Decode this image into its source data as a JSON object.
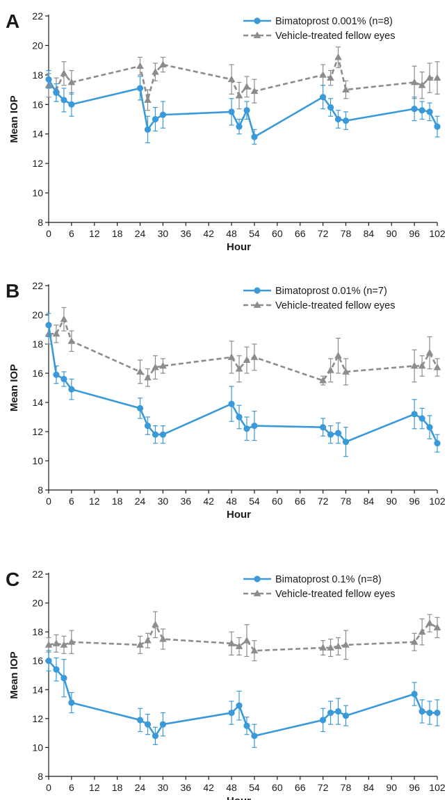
{
  "colors": {
    "treated": "#3a9ad9",
    "vehicle": "#8c8c8c",
    "axis": "#1a1a1a",
    "background": "#ffffff"
  },
  "chart_data": [
    {
      "type": "line",
      "panel_label": "A",
      "xlabel": "Hour",
      "ylabel": "Mean IOP",
      "xlim": [
        0,
        102
      ],
      "ylim": [
        8,
        22
      ],
      "xticks": [
        0,
        6,
        12,
        18,
        24,
        30,
        36,
        42,
        48,
        54,
        60,
        66,
        72,
        78,
        84,
        90,
        96,
        102
      ],
      "yticks": [
        8,
        10,
        12,
        14,
        16,
        18,
        20,
        22
      ],
      "legend_position": "top-right",
      "series": [
        {
          "name": "Bimatoprost 0.001% (n=8)",
          "marker": "circle",
          "line_style": "solid",
          "x": [
            0,
            2,
            4,
            6,
            24,
            26,
            28,
            30,
            48,
            50,
            52,
            54,
            72,
            74,
            76,
            78,
            96,
            98,
            100,
            102
          ],
          "y": [
            17.7,
            16.8,
            16.3,
            16.0,
            17.1,
            14.3,
            15.0,
            15.3,
            15.5,
            14.5,
            15.6,
            13.8,
            16.5,
            15.8,
            15.0,
            14.9,
            15.7,
            15.6,
            15.5,
            14.5
          ],
          "error": [
            0.6,
            0.6,
            0.8,
            0.8,
            0.8,
            0.9,
            0.8,
            0.9,
            0.9,
            0.5,
            0.6,
            0.5,
            0.8,
            0.6,
            0.6,
            0.6,
            0.8,
            0.6,
            0.6,
            0.7
          ]
        },
        {
          "name": "Vehicle-treated fellow eyes",
          "marker": "triangle",
          "line_style": "dashed",
          "x": [
            0,
            2,
            4,
            6,
            24,
            26,
            28,
            30,
            48,
            50,
            52,
            54,
            72,
            74,
            76,
            78,
            96,
            98,
            100,
            102
          ],
          "y": [
            17.3,
            17.0,
            18.1,
            17.5,
            18.6,
            16.3,
            18.2,
            18.7,
            17.7,
            16.6,
            17.2,
            16.9,
            18.0,
            17.8,
            19.2,
            17.0,
            17.5,
            17.3,
            17.8,
            17.8
          ],
          "error": [
            0.8,
            0.8,
            0.8,
            0.8,
            0.6,
            0.7,
            0.6,
            0.5,
            1.0,
            0.9,
            0.7,
            0.8,
            0.7,
            0.5,
            0.7,
            0.6,
            1.1,
            0.9,
            1.0,
            1.1
          ]
        }
      ]
    },
    {
      "type": "line",
      "panel_label": "B",
      "xlabel": "Hour",
      "ylabel": "Mean IOP",
      "xlim": [
        0,
        102
      ],
      "ylim": [
        8,
        22
      ],
      "xticks": [
        0,
        6,
        12,
        18,
        24,
        30,
        36,
        42,
        48,
        54,
        60,
        66,
        72,
        78,
        84,
        90,
        96,
        102
      ],
      "yticks": [
        8,
        10,
        12,
        14,
        16,
        18,
        20,
        22
      ],
      "legend_position": "top-right",
      "series": [
        {
          "name": "Bimatoprost 0.01% (n=7)",
          "marker": "circle",
          "line_style": "solid",
          "x": [
            0,
            2,
            4,
            6,
            24,
            26,
            28,
            30,
            48,
            50,
            52,
            54,
            72,
            74,
            76,
            78,
            96,
            98,
            100,
            102
          ],
          "y": [
            19.3,
            15.9,
            15.6,
            14.9,
            13.6,
            12.4,
            11.8,
            11.8,
            13.9,
            13.0,
            12.2,
            12.4,
            12.3,
            11.8,
            11.9,
            11.3,
            13.2,
            12.9,
            12.3,
            11.2
          ],
          "error": [
            0.8,
            0.6,
            0.5,
            0.7,
            0.7,
            0.6,
            0.6,
            0.6,
            1.2,
            0.8,
            0.8,
            1.0,
            0.6,
            0.6,
            0.7,
            1.0,
            1.0,
            0.7,
            0.8,
            0.6
          ]
        },
        {
          "name": "Vehicle-treated fellow eyes",
          "marker": "triangle",
          "line_style": "dashed",
          "x": [
            0,
            2,
            4,
            6,
            24,
            26,
            28,
            30,
            48,
            50,
            52,
            54,
            72,
            74,
            76,
            78,
            96,
            98,
            100,
            102
          ],
          "y": [
            18.7,
            18.7,
            19.7,
            18.2,
            16.1,
            15.7,
            16.4,
            16.5,
            17.1,
            16.3,
            16.9,
            17.1,
            15.5,
            16.2,
            17.2,
            16.1,
            16.5,
            16.5,
            17.4,
            16.4
          ],
          "error": [
            0.7,
            0.6,
            0.8,
            0.7,
            0.8,
            0.6,
            0.8,
            0.5,
            1.1,
            0.9,
            0.9,
            0.9,
            0.3,
            0.8,
            1.2,
            0.9,
            1.1,
            0.7,
            1.1,
            0.6
          ]
        }
      ]
    },
    {
      "type": "line",
      "panel_label": "C",
      "xlabel": "Hour",
      "ylabel": "Mean IOP",
      "xlim": [
        0,
        102
      ],
      "ylim": [
        8,
        22
      ],
      "xticks": [
        0,
        6,
        12,
        18,
        24,
        30,
        36,
        42,
        48,
        54,
        60,
        66,
        72,
        78,
        84,
        90,
        96,
        102
      ],
      "yticks": [
        8,
        10,
        12,
        14,
        16,
        18,
        20,
        22
      ],
      "legend_position": "top-right",
      "series": [
        {
          "name": "Bimatoprost 0.1% (n=8)",
          "marker": "circle",
          "line_style": "solid",
          "x": [
            0,
            2,
            4,
            6,
            24,
            26,
            28,
            30,
            48,
            50,
            52,
            54,
            72,
            74,
            76,
            78,
            96,
            98,
            100,
            102
          ],
          "y": [
            16.0,
            15.4,
            14.8,
            13.1,
            11.9,
            11.6,
            10.8,
            11.6,
            12.4,
            12.9,
            11.5,
            10.8,
            11.9,
            12.4,
            12.5,
            12.2,
            13.7,
            12.5,
            12.4,
            12.4
          ],
          "error": [
            0.7,
            0.8,
            1.3,
            0.7,
            0.8,
            0.7,
            0.6,
            0.8,
            0.8,
            1.0,
            0.6,
            0.8,
            0.8,
            0.8,
            0.9,
            0.7,
            0.8,
            0.8,
            0.8,
            0.9
          ]
        },
        {
          "name": "Vehicle-treated fellow eyes",
          "marker": "triangle",
          "line_style": "dashed",
          "x": [
            0,
            2,
            4,
            6,
            24,
            26,
            28,
            30,
            48,
            50,
            52,
            54,
            72,
            74,
            76,
            78,
            96,
            98,
            100,
            102
          ],
          "y": [
            17.1,
            17.2,
            17.1,
            17.3,
            17.1,
            17.4,
            18.5,
            17.5,
            17.2,
            17.0,
            17.4,
            16.7,
            16.9,
            16.9,
            17.0,
            17.1,
            17.3,
            18.0,
            18.6,
            18.3
          ],
          "error": [
            0.5,
            0.6,
            0.6,
            0.8,
            0.6,
            0.5,
            0.9,
            0.7,
            0.8,
            0.6,
            1.1,
            0.7,
            0.5,
            0.6,
            0.6,
            1.0,
            0.6,
            0.9,
            0.6,
            0.7
          ]
        }
      ]
    }
  ]
}
